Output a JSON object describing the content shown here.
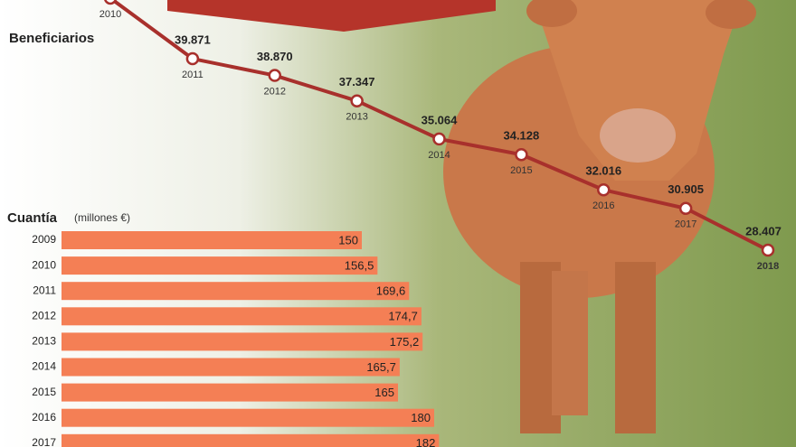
{
  "chart_data": [
    {
      "type": "line",
      "title": "Beneficiarios",
      "categories": [
        "2010",
        "2011",
        "2012",
        "2013",
        "2014",
        "2015",
        "2016",
        "2017",
        "2018"
      ],
      "values": [
        43500,
        39871,
        38870,
        37347,
        35064,
        34128,
        32016,
        30905,
        28407
      ],
      "value_labels": [
        null,
        "39.871",
        "38.870",
        "37.347",
        "35.064",
        "34.128",
        "32.016",
        "30.905",
        "28.407"
      ],
      "color": "#a8302c",
      "ylim": [
        26000,
        44000
      ]
    },
    {
      "type": "hbar",
      "title": "Cuantía",
      "subtitle": "(millones €)",
      "categories": [
        "2009",
        "2010",
        "2011",
        "2012",
        "2013",
        "2014",
        "2015",
        "2016",
        "2017"
      ],
      "values": [
        150,
        156.5,
        169.6,
        174.7,
        175.2,
        165.7,
        165,
        180,
        182
      ],
      "value_labels": [
        "150",
        "156,5",
        "169,6",
        "174,7",
        "175,2",
        "165,7",
        "165",
        "180",
        "182"
      ],
      "color": "#f47f55",
      "xlim": [
        0,
        330
      ]
    }
  ]
}
